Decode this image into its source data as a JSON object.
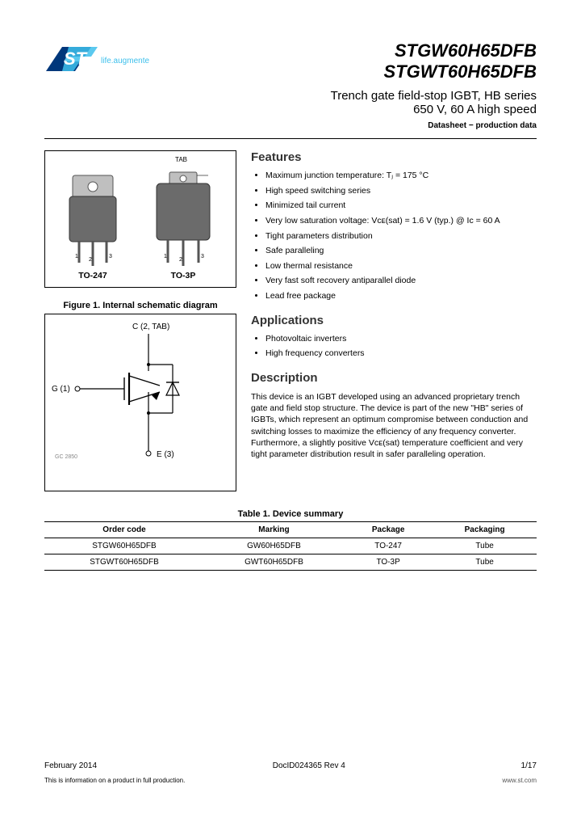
{
  "logo": {
    "tagline": "life.augmented",
    "brand_color": "#00377b",
    "accent_color": "#3ec0ec"
  },
  "part1": "STGW60H65DFB",
  "part2": "STGWT60H65DFB",
  "subtitle1": "Trench gate field-stop IGBT, HB series",
  "subtitle2": "650 V, 60 A high speed",
  "ds_label": "Datasheet − production data",
  "packages": {
    "left_label": "TO-247",
    "right_label": "TO-3P",
    "tab": "TAB",
    "body_fill": "#6b6b6b"
  },
  "fig1_caption": "Figure 1. Internal schematic diagram",
  "schematic": {
    "c_label": "C (2, TAB)",
    "g_label": "G (1)",
    "e_label": "E (3)",
    "code": "GC 2850"
  },
  "features_title": "Features",
  "features": [
    "Maximum junction temperature: Tⱼ = 175 °C",
    "High speed switching series",
    "Minimized tail current",
    "Very low saturation voltage: Vᴄᴇ(sat) = 1.6 V (typ.) @ Iᴄ = 60 A",
    "Tight parameters distribution",
    "Safe paralleling",
    "Low thermal resistance",
    "Very fast soft recovery antiparallel diode",
    "Lead free package"
  ],
  "applications_title": "Applications",
  "applications": [
    "Photovoltaic inverters",
    "High frequency converters"
  ],
  "description_title": "Description",
  "description": "This device is an IGBT developed using an advanced proprietary trench gate and field stop structure. The device is part of the new \"HB\" series of IGBTs, which represent an optimum compromise between conduction and switching losses to maximize the efficiency of any frequency converter. Furthermore, a slightly positive Vᴄᴇ(sat) temperature coefficient and very tight parameter distribution result in safer paralleling operation.",
  "table": {
    "caption": "Table 1. Device summary",
    "headers": [
      "Order code",
      "Marking",
      "Package",
      "Packaging"
    ],
    "rows": [
      [
        "STGW60H65DFB",
        "GW60H65DFB",
        "TO-247",
        "Tube"
      ],
      [
        "STGWT60H65DFB",
        "GWT60H65DFB",
        "TO-3P",
        "Tube"
      ]
    ]
  },
  "footer": {
    "date": "February 2014",
    "docid": "DocID024365 Rev 4",
    "page": "1/17",
    "note": "This is information on a product in full production.",
    "site": "www.st.com"
  }
}
